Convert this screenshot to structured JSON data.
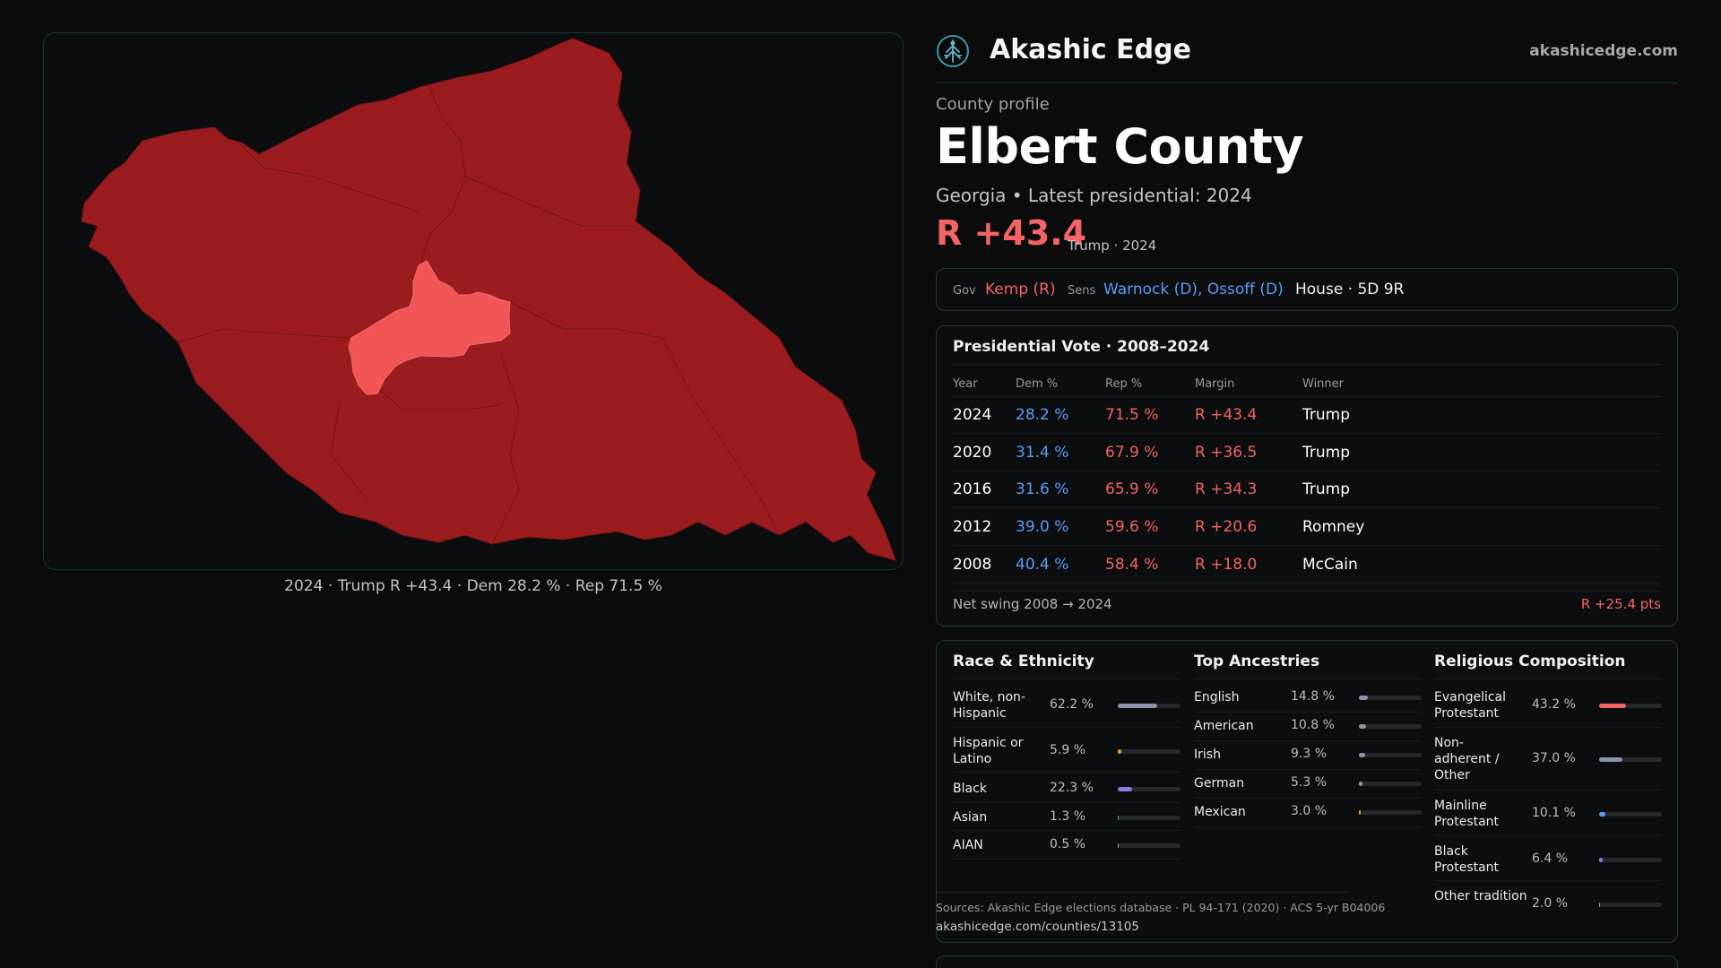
{
  "map": {
    "caption": "2024 · Trump R +43.4 · Dem 28.2 % · Rep 71.5 %",
    "county_fill": "#9a1c1f",
    "highlight_fill": "#f25555"
  },
  "brand": {
    "name": "Akashic Edge",
    "url": "akashicedge.com",
    "logo_icon": "tree-emblem-icon"
  },
  "profile": {
    "kicker": "County profile",
    "title": "Elbert County",
    "subtitle": "Georgia • Latest presidential: 2024",
    "margin": "R +43.4",
    "margin_note": "Trump · 2024"
  },
  "officials": {
    "gov_label": "Gov",
    "gov": "Kemp (R)",
    "sens_label": "Sens",
    "sens": "Warnock (D), Ossoff (D)",
    "house": "House · 5D 9R"
  },
  "presidential": {
    "title": "Presidential Vote · 2008–2024",
    "headers": [
      "Year",
      "Dem %",
      "Rep %",
      "Margin",
      "Winner"
    ],
    "rows": [
      {
        "year": "2024",
        "dem": "28.2 %",
        "rep": "71.5 %",
        "margin": "R +43.4",
        "winner": "Trump"
      },
      {
        "year": "2020",
        "dem": "31.4 %",
        "rep": "67.9 %",
        "margin": "R +36.5",
        "winner": "Trump"
      },
      {
        "year": "2016",
        "dem": "31.6 %",
        "rep": "65.9 %",
        "margin": "R +34.3",
        "winner": "Trump"
      },
      {
        "year": "2012",
        "dem": "39.0 %",
        "rep": "59.6 %",
        "margin": "R +20.6",
        "winner": "Romney"
      },
      {
        "year": "2008",
        "dem": "40.4 %",
        "rep": "58.4 %",
        "margin": "R +18.0",
        "winner": "McCain"
      }
    ],
    "swing_label": "Net swing 2008 → 2024",
    "swing_value": "R +25.4 pts"
  },
  "race": {
    "title": "Race & Ethnicity",
    "items": [
      {
        "label": "White, non-Hispanic",
        "value": "62.2 %",
        "pct": 62.2,
        "color": "#8a94a6"
      },
      {
        "label": "Hispanic or Latino",
        "value": "5.9 %",
        "pct": 5.9,
        "color": "#e0952a"
      },
      {
        "label": "Black",
        "value": "22.3 %",
        "pct": 22.3,
        "color": "#8a78e6"
      },
      {
        "label": "Asian",
        "value": "1.3 %",
        "pct": 1.3,
        "color": "#3fb29a"
      },
      {
        "label": "AIAN",
        "value": "0.5 %",
        "pct": 0.5,
        "color": "#8a94a6"
      }
    ]
  },
  "ancestry": {
    "title": "Top Ancestries",
    "items": [
      {
        "label": "English",
        "value": "14.8 %",
        "pct": 14.8,
        "color": "#8a94a6"
      },
      {
        "label": "American",
        "value": "10.8 %",
        "pct": 10.8,
        "color": "#8a94a6"
      },
      {
        "label": "Irish",
        "value": "9.3 %",
        "pct": 9.3,
        "color": "#8a94a6"
      },
      {
        "label": "German",
        "value": "5.3 %",
        "pct": 5.3,
        "color": "#8a94a6"
      },
      {
        "label": "Mexican",
        "value": "3.0 %",
        "pct": 3.0,
        "color": "#e0952a"
      }
    ]
  },
  "religion": {
    "title": "Religious Composition",
    "items": [
      {
        "label": "Evangelical Protestant",
        "value": "43.2 %",
        "pct": 43.2,
        "color": "#f46464"
      },
      {
        "label": "Non-adherent / Other",
        "value": "37.0 %",
        "pct": 37.0,
        "color": "#8a94a6"
      },
      {
        "label": "Mainline Protestant",
        "value": "10.1 %",
        "pct": 10.1,
        "color": "#5a9df5"
      },
      {
        "label": "Black Protestant",
        "value": "6.4 %",
        "pct": 6.4,
        "color": "#8a78e6"
      },
      {
        "label": "Other tradition",
        "value": "2.0 %",
        "pct": 2.0,
        "color": "#8a94a6"
      }
    ]
  },
  "sources": {
    "text": "Sources: Akashic Edge elections database · PL 94-171 (2020) · ACS 5-yr B04006",
    "url": "akashicedge.com/counties/13105"
  }
}
